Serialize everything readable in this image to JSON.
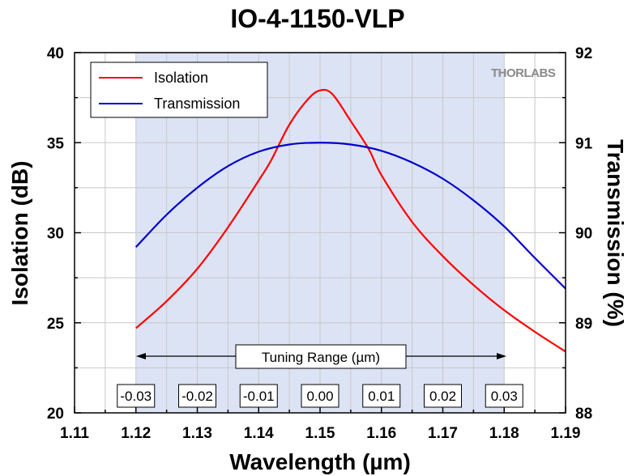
{
  "chart_data": {
    "type": "line",
    "title": "IO-4-1150-VLP",
    "xlabel": "Wavelength (µm)",
    "ylabel_left": "Isolation (dB)",
    "ylabel_right": "Transmission (%)",
    "xlim": [
      1.11,
      1.19
    ],
    "ylim_left": [
      20,
      40
    ],
    "ylim_right": [
      88,
      92
    ],
    "x_ticks": [
      "1.11",
      "1.12",
      "1.13",
      "1.14",
      "1.15",
      "1.16",
      "1.17",
      "1.18",
      "1.19"
    ],
    "y_ticks_left": [
      "20",
      "25",
      "30",
      "35",
      "40"
    ],
    "y_ticks_right": [
      "88",
      "89",
      "90",
      "91",
      "92"
    ],
    "grid": true,
    "legend_position": "top-left",
    "shaded_region": {
      "x_range": [
        1.12,
        1.18
      ],
      "color": "#dce3f5"
    },
    "annotation": "Tuning Range (µm)",
    "offset_labels": [
      "-0.03",
      "-0.02",
      "-0.01",
      "0.00",
      "0.01",
      "0.02",
      "0.03"
    ],
    "logo": "THORLABS",
    "series": [
      {
        "name": "Isolation",
        "axis": "left",
        "color": "#ff0000",
        "x": [
          1.12,
          1.125,
          1.13,
          1.135,
          1.14,
          1.142,
          1.145,
          1.148,
          1.15,
          1.152,
          1.155,
          1.158,
          1.16,
          1.165,
          1.17,
          1.175,
          1.18,
          1.185,
          1.19
        ],
        "y": [
          24.7,
          26.2,
          28.0,
          30.3,
          32.9,
          34.0,
          36.0,
          37.4,
          37.9,
          37.7,
          36.2,
          34.6,
          33.2,
          30.6,
          28.7,
          27.1,
          25.7,
          24.5,
          23.4
        ]
      },
      {
        "name": "Transmission",
        "axis": "right",
        "color": "#0000cc",
        "x": [
          1.12,
          1.125,
          1.13,
          1.135,
          1.14,
          1.145,
          1.15,
          1.155,
          1.16,
          1.165,
          1.17,
          1.175,
          1.18,
          1.185,
          1.19
        ],
        "y": [
          89.84,
          90.2,
          90.5,
          90.74,
          90.9,
          90.98,
          91.0,
          90.98,
          90.91,
          90.78,
          90.6,
          90.36,
          90.07,
          89.72,
          89.38
        ]
      }
    ]
  }
}
